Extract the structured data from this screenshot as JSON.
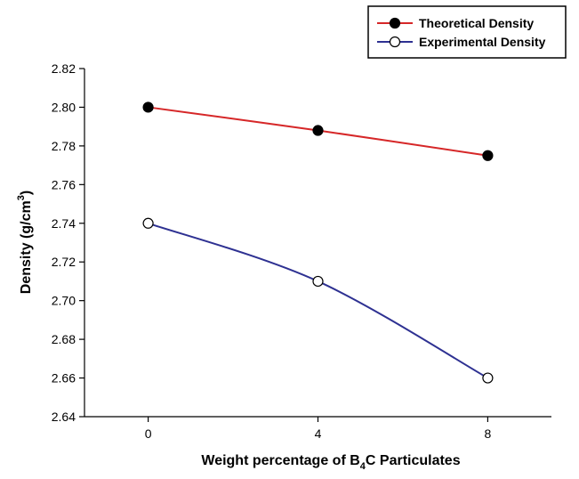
{
  "chart_data": {
    "type": "line",
    "x": [
      0,
      4,
      8
    ],
    "xlim": [
      -1.5,
      9.5
    ],
    "ylim": [
      2.64,
      2.82
    ],
    "x_ticks": [
      "0",
      "4",
      "8"
    ],
    "y_ticks": [
      "2.64",
      "2.66",
      "2.68",
      "2.70",
      "2.72",
      "2.74",
      "2.76",
      "2.78",
      "2.80",
      "2.82"
    ],
    "xlabel": {
      "prefix": "Weight percentage of B",
      "subscript": "4",
      "suffix": "C Particulates"
    },
    "ylabel": {
      "prefix": "Density (g/cm",
      "superscript": "3",
      "suffix": ")"
    },
    "grid": false,
    "legend_position": "top-right",
    "series": [
      {
        "name": "Theoretical Density",
        "values": [
          2.8,
          2.788,
          2.775
        ],
        "color": "#d62728",
        "marker": "filled-circle"
      },
      {
        "name": "Experimental Density",
        "values": [
          2.74,
          2.71,
          2.66
        ],
        "color": "#2e3192",
        "marker": "open-circle"
      }
    ]
  }
}
